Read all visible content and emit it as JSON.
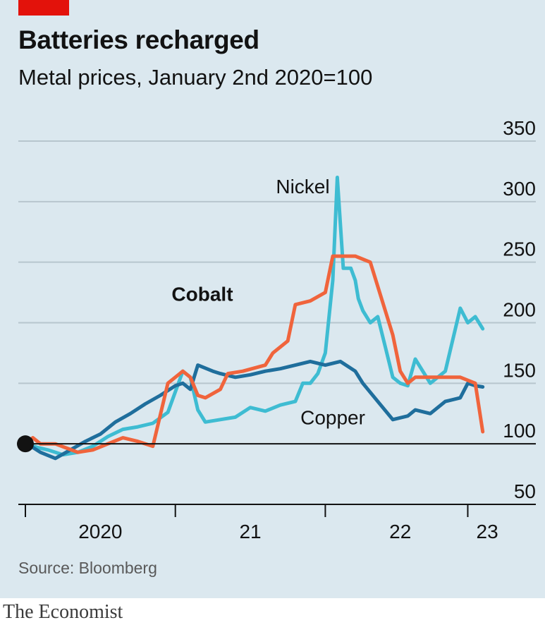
{
  "header": {
    "title": "Batteries recharged",
    "subtitle": "Metal prices, January 2nd 2020=100"
  },
  "source": "Source: Bloomberg",
  "footer": "The Economist",
  "colors": {
    "background": "#dbe8ef",
    "accent_red": "#e3120b",
    "cobalt": "#f0643c",
    "nickel": "#3ebcd2",
    "copper": "#1f6e9c",
    "grid": "#b7c6ce",
    "axis": "#121212"
  },
  "chart_data": {
    "type": "line",
    "title": "Batteries recharged",
    "subtitle": "Metal prices, January 2nd 2020=100",
    "xlabel": "",
    "ylabel": "",
    "xlim": [
      2020.0,
      2023.15
    ],
    "ylim": [
      50,
      350
    ],
    "yticks": [
      50,
      100,
      150,
      200,
      250,
      300,
      350
    ],
    "ytick_labels": [
      "50",
      "100",
      "150",
      "200",
      "250",
      "300",
      "350"
    ],
    "xticks": [
      2020.0,
      2021.0,
      2022.0,
      2022.95
    ],
    "xtick_labels": [
      {
        "label": "2020",
        "x": 2020.5
      },
      {
        "label": "21",
        "x": 2021.5
      },
      {
        "label": "22",
        "x": 2022.5
      },
      {
        "label": "23",
        "x": 2023.08
      }
    ],
    "x_axis_line_value": 50,
    "baseline": 100,
    "start_marker": {
      "x": 2020.0,
      "y": 100
    },
    "series": [
      {
        "name": "Nickel",
        "label": "Nickel",
        "label_position": {
          "x": 2021.85,
          "y": 307
        },
        "x": [
          2020.0,
          2020.08,
          2020.15,
          2020.25,
          2020.35,
          2020.45,
          2020.55,
          2020.65,
          2020.75,
          2020.85,
          2020.95,
          2021.05,
          2021.1,
          2021.15,
          2021.2,
          2021.3,
          2021.4,
          2021.5,
          2021.6,
          2021.7,
          2021.8,
          2021.85,
          2021.9,
          2021.95,
          2022.0,
          2022.05,
          2022.08,
          2022.12,
          2022.17,
          2022.2,
          2022.22,
          2022.25,
          2022.3,
          2022.35,
          2022.4,
          2022.45,
          2022.5,
          2022.55,
          2022.6,
          2022.7,
          2022.8,
          2022.9,
          2022.95,
          2023.0,
          2023.05
        ],
        "y": [
          100,
          97,
          95,
          91,
          93,
          98,
          106,
          112,
          114,
          117,
          126,
          160,
          155,
          128,
          118,
          120,
          122,
          130,
          127,
          132,
          135,
          150,
          150,
          158,
          175,
          235,
          320,
          245,
          245,
          235,
          220,
          210,
          200,
          205,
          180,
          155,
          150,
          148,
          170,
          150,
          160,
          212,
          200,
          205,
          195
        ]
      },
      {
        "name": "Cobalt",
        "label": "Cobalt",
        "label_bold": true,
        "label_position": {
          "x": 2021.18,
          "y": 218
        },
        "x": [
          2020.0,
          2020.05,
          2020.1,
          2020.2,
          2020.35,
          2020.45,
          2020.55,
          2020.65,
          2020.75,
          2020.85,
          2020.95,
          2021.05,
          2021.1,
          2021.15,
          2021.2,
          2021.3,
          2021.35,
          2021.45,
          2021.6,
          2021.65,
          2021.75,
          2021.8,
          2021.9,
          2022.0,
          2022.05,
          2022.15,
          2022.2,
          2022.3,
          2022.35,
          2022.45,
          2022.5,
          2022.55,
          2022.6,
          2022.7,
          2022.8,
          2022.9,
          2023.0,
          2023.05
        ],
        "y": [
          100,
          105,
          100,
          100,
          93,
          95,
          100,
          105,
          102,
          98,
          150,
          160,
          155,
          140,
          138,
          145,
          158,
          160,
          165,
          175,
          185,
          215,
          218,
          225,
          255,
          255,
          255,
          250,
          230,
          190,
          160,
          150,
          155,
          155,
          155,
          155,
          150,
          110
        ]
      },
      {
        "name": "Copper",
        "label": "Copper",
        "label_position": {
          "x": 2022.05,
          "y": 116
        },
        "x": [
          2020.0,
          2020.05,
          2020.1,
          2020.2,
          2020.3,
          2020.4,
          2020.5,
          2020.6,
          2020.7,
          2020.8,
          2020.9,
          2021.0,
          2021.05,
          2021.1,
          2021.15,
          2021.25,
          2021.3,
          2021.4,
          2021.5,
          2021.6,
          2021.7,
          2021.8,
          2021.9,
          2022.0,
          2022.1,
          2022.2,
          2022.25,
          2022.35,
          2022.45,
          2022.55,
          2022.6,
          2022.7,
          2022.8,
          2022.9,
          2022.95,
          2023.0,
          2023.05
        ],
        "y": [
          100,
          97,
          93,
          88,
          95,
          102,
          108,
          118,
          125,
          133,
          140,
          148,
          150,
          145,
          165,
          160,
          158,
          155,
          157,
          160,
          162,
          165,
          168,
          165,
          168,
          160,
          150,
          135,
          120,
          123,
          128,
          125,
          135,
          138,
          150,
          148,
          147
        ]
      }
    ]
  }
}
